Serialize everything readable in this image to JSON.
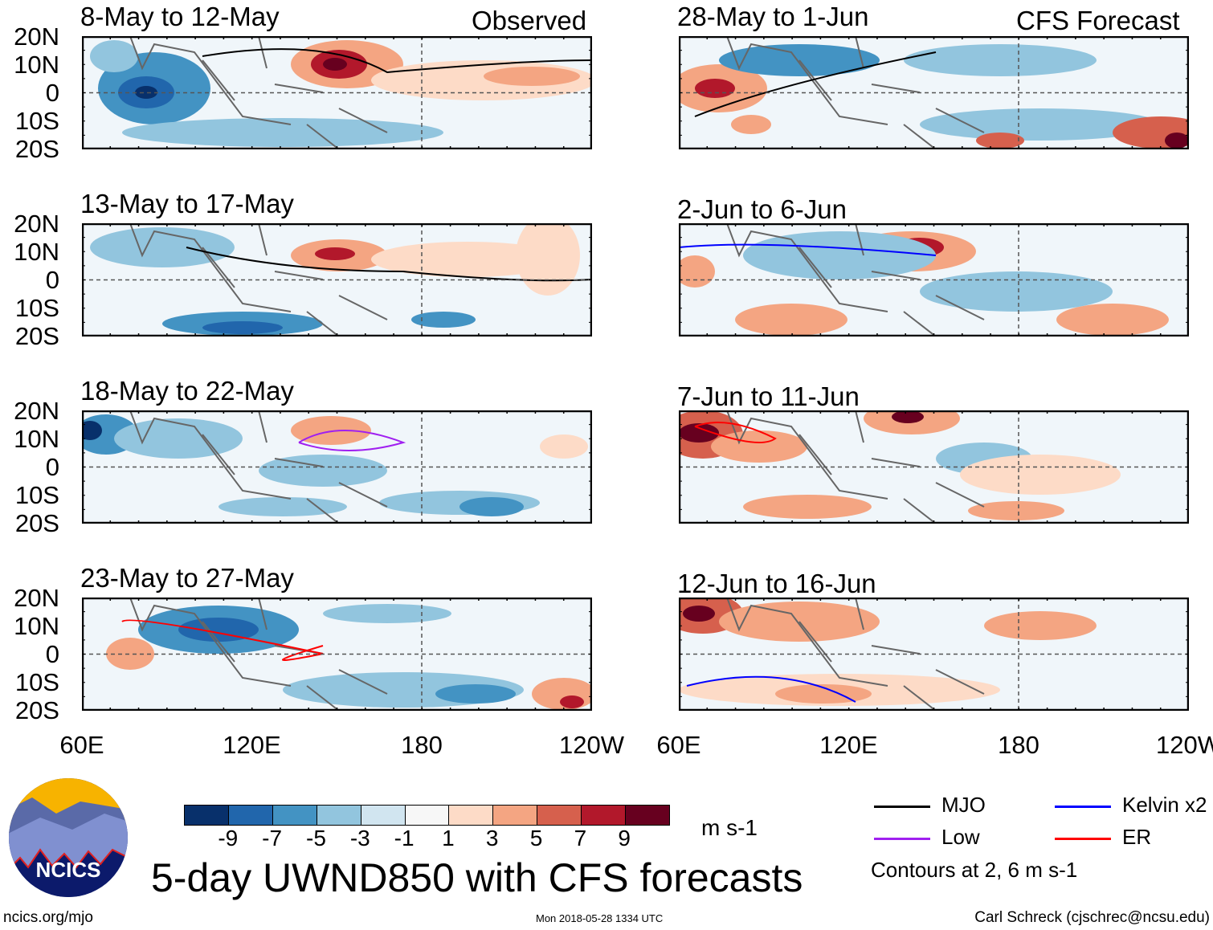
{
  "labels": {
    "observed": "Observed",
    "forecast": "CFS Forecast"
  },
  "panels_left": [
    {
      "title": "8-May to 12-May"
    },
    {
      "title": "13-May to 17-May"
    },
    {
      "title": "18-May to 22-May"
    },
    {
      "title": "23-May to 27-May"
    }
  ],
  "panels_right": [
    {
      "title": "28-May to 1-Jun"
    },
    {
      "title": "2-Jun to 6-Jun"
    },
    {
      "title": "7-Jun to 11-Jun"
    },
    {
      "title": "12-Jun to 16-Jun"
    }
  ],
  "lat_labels": [
    "20N",
    "10N",
    "0",
    "10S",
    "20S"
  ],
  "lon_labels": [
    "60E",
    "120E",
    "180",
    "120W"
  ],
  "colorbar": {
    "colors": [
      "#08306b",
      "#2166ac",
      "#4393c3",
      "#92c5de",
      "#d1e5f0",
      "#f7f7f7",
      "#fddbc7",
      "#f4a582",
      "#d6604d",
      "#b2182b",
      "#67001f"
    ],
    "labels": [
      "-9",
      "-7",
      "-5",
      "-3",
      "-1",
      "1",
      "3",
      "5",
      "7",
      "9"
    ],
    "units": "m s-1"
  },
  "legend": {
    "items": [
      {
        "label": "MJO",
        "color": "#000000"
      },
      {
        "label": "Kelvin x2",
        "color": "#0000ff"
      },
      {
        "label": "Low",
        "color": "#a020f0"
      },
      {
        "label": "ER",
        "color": "#ff0000"
      }
    ],
    "note": "Contours at 2, 6 m s-1"
  },
  "logo": {
    "text": "NCICS"
  },
  "title": "5-day UWND850 with CFS forecasts",
  "footer": {
    "url": "ncics.org/mjo",
    "timestamp": "Mon 2018-05-28 1334 UTC",
    "credit": "Carl Schreck (cjschrec@ncsu.edu)"
  }
}
